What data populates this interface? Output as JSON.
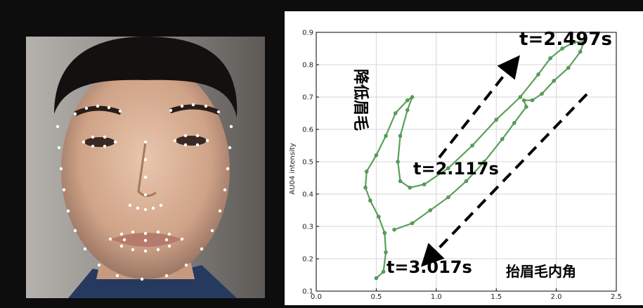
{
  "image_panel": {
    "icon": "face-landmarks-photo"
  },
  "chart_data": {
    "type": "line",
    "ylabel": "AU04 intensity",
    "xlabel": "",
    "xlim": [
      0.0,
      2.5
    ],
    "ylim": [
      0.1,
      0.9
    ],
    "xticks": [
      "0.0",
      "0.5",
      "1.0",
      "1.5",
      "2.0",
      "2.5"
    ],
    "yticks": [
      "0.1",
      "0.2",
      "0.3",
      "0.4",
      "0.5",
      "0.6",
      "0.7",
      "0.8",
      "0.9"
    ],
    "grid": true,
    "series": [
      {
        "color": "#5aa05a",
        "x": [
          0.5,
          0.56,
          0.58,
          0.57,
          0.52,
          0.45,
          0.41,
          0.42,
          0.5,
          0.58,
          0.66,
          0.76,
          0.8,
          0.76,
          0.7,
          0.68,
          0.7,
          0.78,
          0.9,
          1.1,
          1.3,
          1.5,
          1.7,
          1.85,
          1.95,
          2.05,
          2.15,
          2.23,
          2.2,
          2.1,
          1.98,
          1.88,
          1.8,
          1.73,
          1.75,
          1.65,
          1.55,
          1.4,
          1.25,
          1.1,
          0.95,
          0.8,
          0.65
        ],
        "y": [
          0.14,
          0.16,
          0.22,
          0.28,
          0.33,
          0.38,
          0.42,
          0.47,
          0.52,
          0.58,
          0.65,
          0.69,
          0.7,
          0.66,
          0.58,
          0.5,
          0.44,
          0.42,
          0.43,
          0.48,
          0.55,
          0.63,
          0.7,
          0.77,
          0.82,
          0.85,
          0.87,
          0.87,
          0.84,
          0.79,
          0.75,
          0.71,
          0.69,
          0.69,
          0.67,
          0.62,
          0.57,
          0.5,
          0.44,
          0.39,
          0.35,
          0.31,
          0.29
        ]
      }
    ],
    "annotations": [
      {
        "id": "t1",
        "text": "t=2.497s"
      },
      {
        "id": "t2",
        "text": "t=2.117s"
      },
      {
        "id": "t3",
        "text": "t=3.017s"
      },
      {
        "id": "lower",
        "text": "降低眉毛"
      },
      {
        "id": "raise",
        "text": "抬眉毛内角"
      }
    ]
  }
}
